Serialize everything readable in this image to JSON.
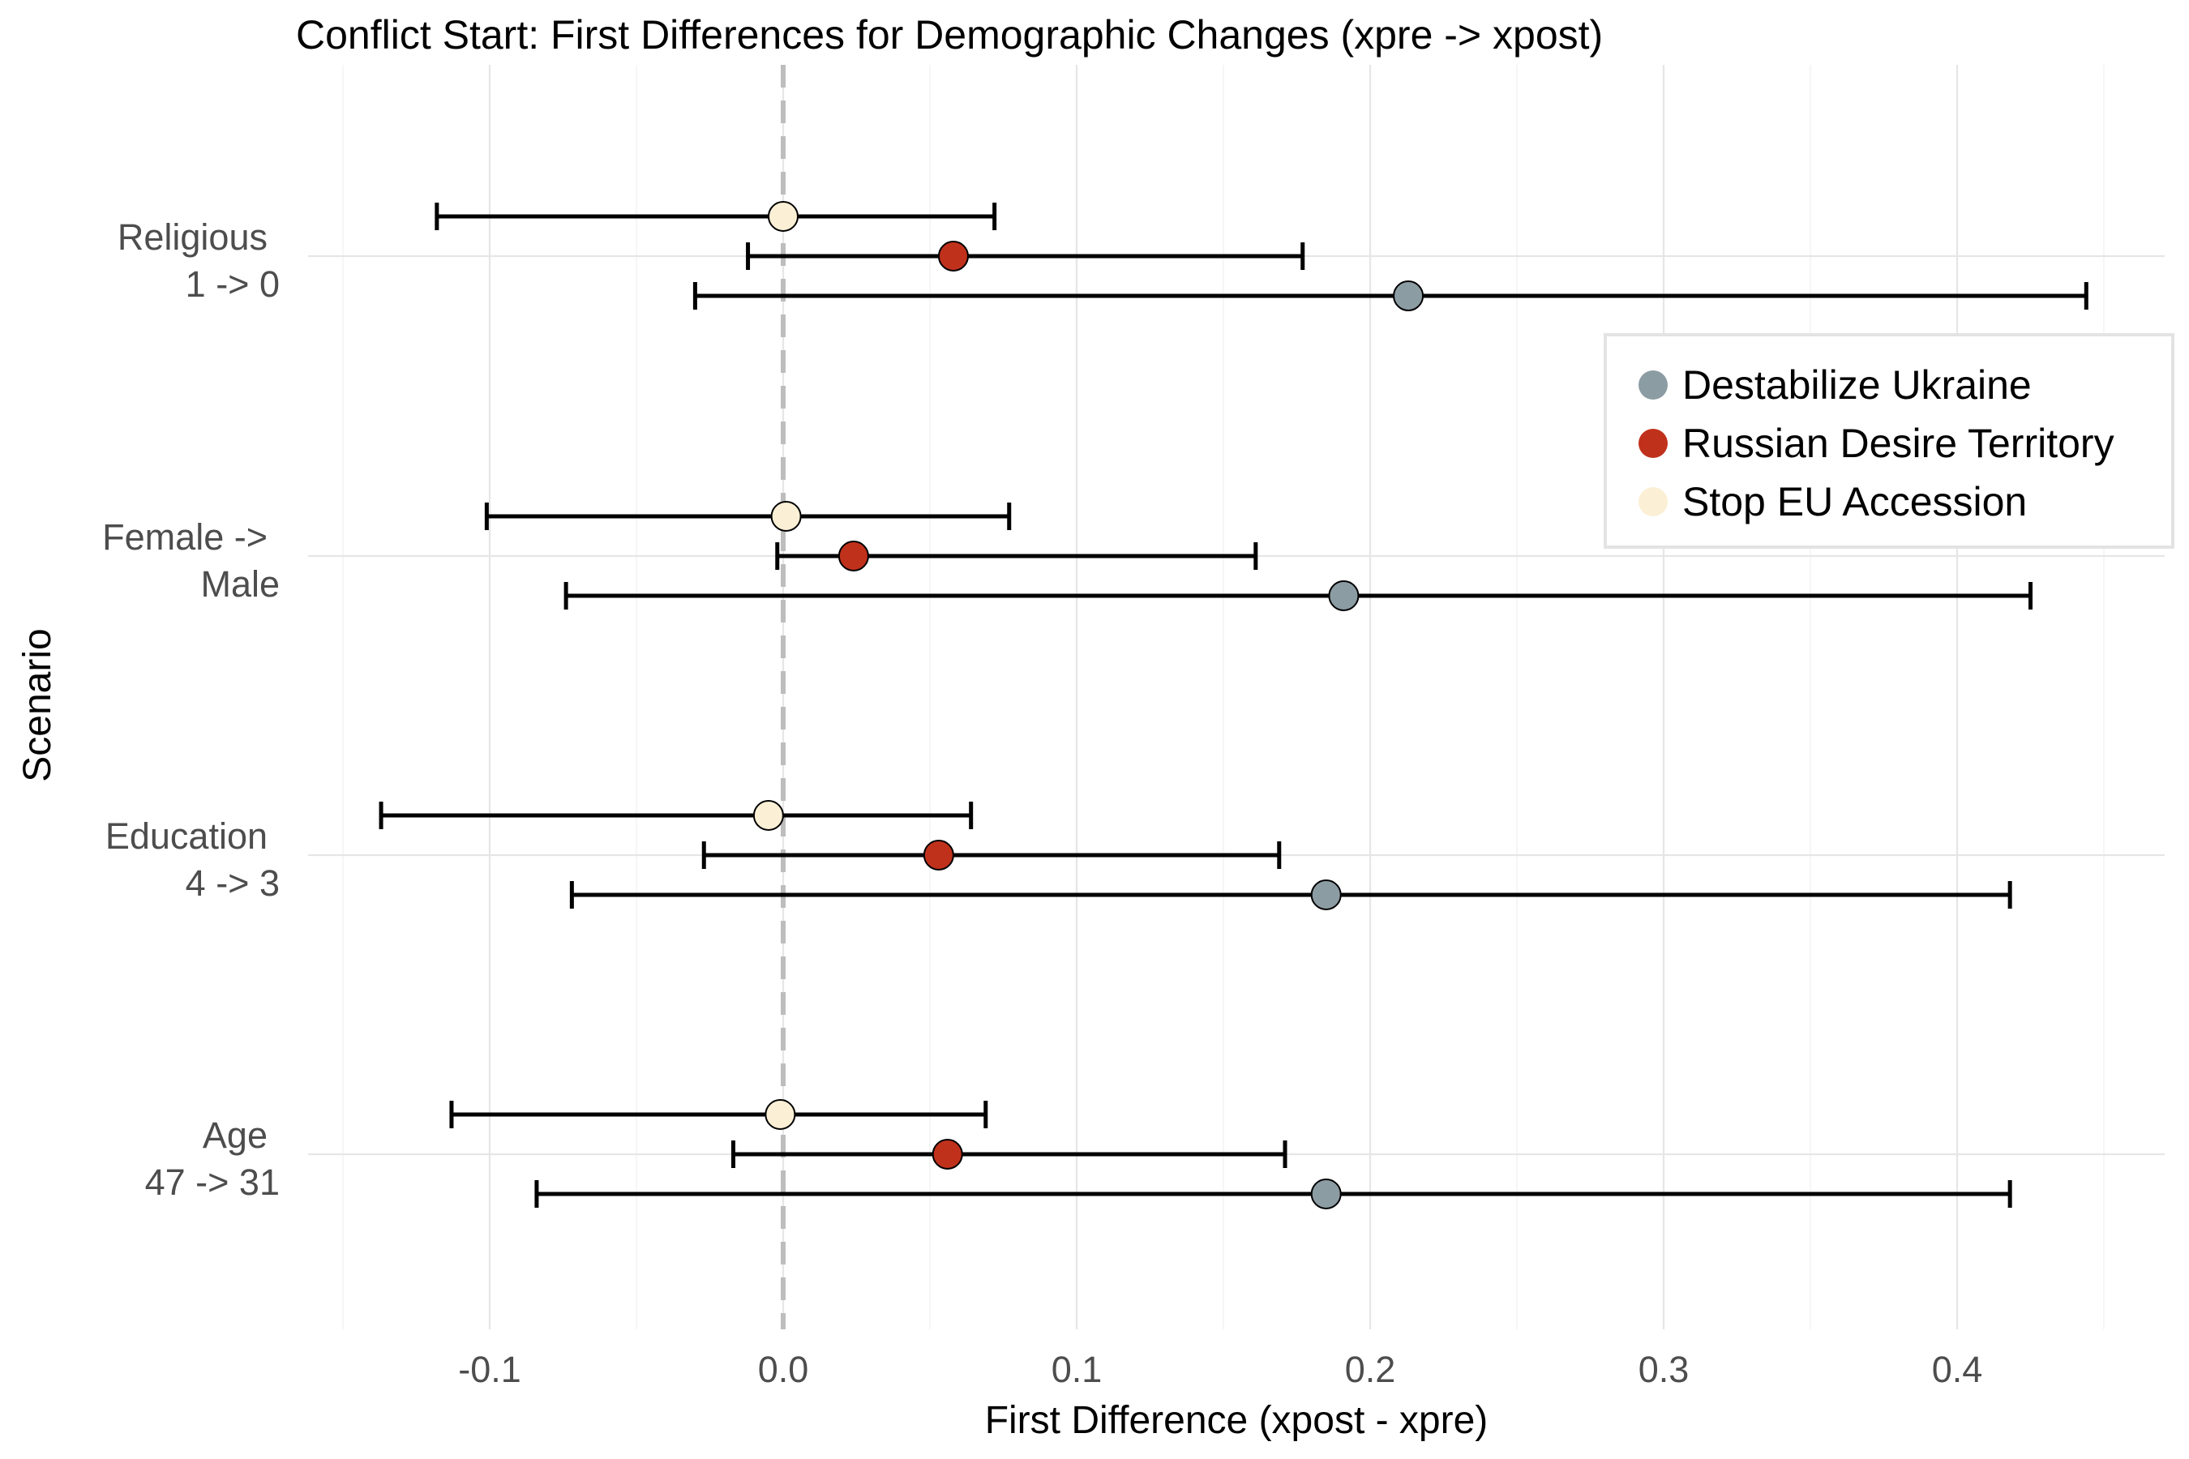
{
  "chart_data": {
    "type": "scatter",
    "title": "Conflict Start: First Differences for Demographic Changes (xpre -> xpost)",
    "xlabel": "First Difference (xpost - xpre)",
    "ylabel": "Scenario",
    "xlim": [
      -0.15,
      0.45
    ],
    "x_ticks": [
      -0.1,
      0.0,
      0.1,
      0.2,
      0.3,
      0.4
    ],
    "x_tick_labels": [
      "-0.1",
      "0.0",
      "0.1",
      "0.2",
      "0.3",
      "0.4"
    ],
    "reference_line": 0.0,
    "grid": true,
    "legend_position": "right",
    "categories": [
      {
        "lines": [
          "Religious",
          "1 -> 0"
        ]
      },
      {
        "lines": [
          "Female ->",
          "Male"
        ]
      },
      {
        "lines": [
          "Education",
          "4 -> 3"
        ]
      },
      {
        "lines": [
          "Age",
          "47 -> 31"
        ]
      }
    ],
    "series": [
      {
        "name": "Stop EU Accession",
        "color": "#FBEFD5",
        "points": [
          {
            "estimate": 0.0,
            "lower": -0.118,
            "upper": 0.072
          },
          {
            "estimate": 0.001,
            "lower": -0.101,
            "upper": 0.077
          },
          {
            "estimate": -0.005,
            "lower": -0.137,
            "upper": 0.064
          },
          {
            "estimate": -0.001,
            "lower": -0.113,
            "upper": 0.069
          }
        ]
      },
      {
        "name": "Russian Desire Territory",
        "color": "#C0311C",
        "points": [
          {
            "estimate": 0.058,
            "lower": -0.012,
            "upper": 0.177
          },
          {
            "estimate": 0.024,
            "lower": -0.002,
            "upper": 0.161
          },
          {
            "estimate": 0.053,
            "lower": -0.027,
            "upper": 0.169
          },
          {
            "estimate": 0.056,
            "lower": -0.017,
            "upper": 0.171
          }
        ]
      },
      {
        "name": "Destabilize Ukraine",
        "color": "#8C9CA3",
        "points": [
          {
            "estimate": 0.213,
            "lower": -0.03,
            "upper": 0.444
          },
          {
            "estimate": 0.191,
            "lower": -0.074,
            "upper": 0.425
          },
          {
            "estimate": 0.185,
            "lower": -0.072,
            "upper": 0.418
          },
          {
            "estimate": 0.185,
            "lower": -0.084,
            "upper": 0.418
          }
        ]
      }
    ],
    "legend_order": [
      "Destabilize Ukraine",
      "Russian Desire Territory",
      "Stop EU Accession"
    ]
  }
}
